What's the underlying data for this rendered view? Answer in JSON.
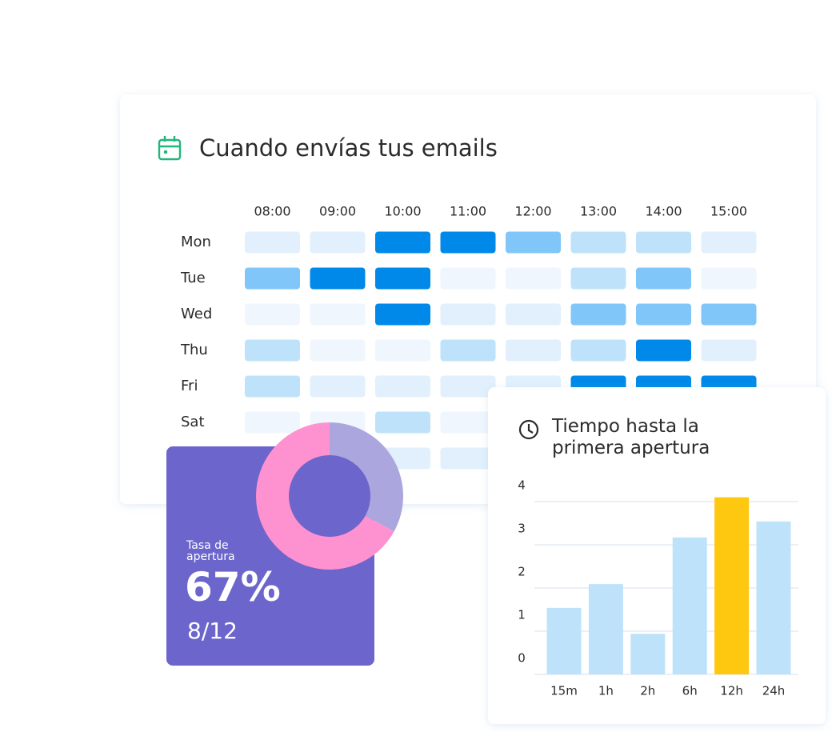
{
  "chart_data": [
    {
      "type": "heatmap",
      "title": "Cuando envías tus emails",
      "x": [
        "08:00",
        "09:00",
        "10:00",
        "11:00",
        "12:00",
        "13:00",
        "14:00",
        "15:00"
      ],
      "y": [
        "Mon",
        "Tue",
        "Wed",
        "Thu",
        "Fri",
        "Sat",
        null
      ],
      "values": [
        [
          1,
          1,
          4,
          4,
          3,
          2,
          2,
          1
        ],
        [
          3,
          4,
          4,
          0,
          0,
          2,
          3,
          0
        ],
        [
          0,
          0,
          4,
          1,
          1,
          3,
          3,
          3
        ],
        [
          2,
          0,
          0,
          2,
          1,
          2,
          4,
          1
        ],
        [
          2,
          1,
          1,
          1,
          1,
          4,
          4,
          4
        ],
        [
          0,
          0,
          2,
          0,
          0,
          0,
          0,
          0
        ],
        [
          0,
          0,
          1,
          1,
          0,
          0,
          0,
          0
        ]
      ],
      "colors": [
        "#eff6fd",
        "#e1f0fc",
        "#bfe2fb",
        "#80c6f8",
        "#0089e8"
      ]
    },
    {
      "type": "pie",
      "title": "Tasa de apertura",
      "values": [
        33,
        67
      ],
      "value_labels": [
        null,
        "67%"
      ],
      "colors": [
        "#aba6de",
        "#fe91cf"
      ],
      "subtitle": "8/12"
    },
    {
      "type": "bar",
      "title": "Tiempo hasta la primera apertura",
      "categories": [
        "15m",
        "1h",
        "2h",
        "6h",
        "12h",
        "24h"
      ],
      "values": [
        1.54,
        2.09,
        0.94,
        3.17,
        4.1,
        3.54
      ],
      "colors": [
        "#bfe2fb",
        "#bfe2fb",
        "#bfe2fb",
        "#bfe2fb",
        "#fdc80f",
        "#bfe2fb"
      ],
      "ylim": [
        0,
        4.2
      ],
      "yticks": [
        0,
        1,
        2,
        3,
        4
      ],
      "grid": true
    }
  ]
}
